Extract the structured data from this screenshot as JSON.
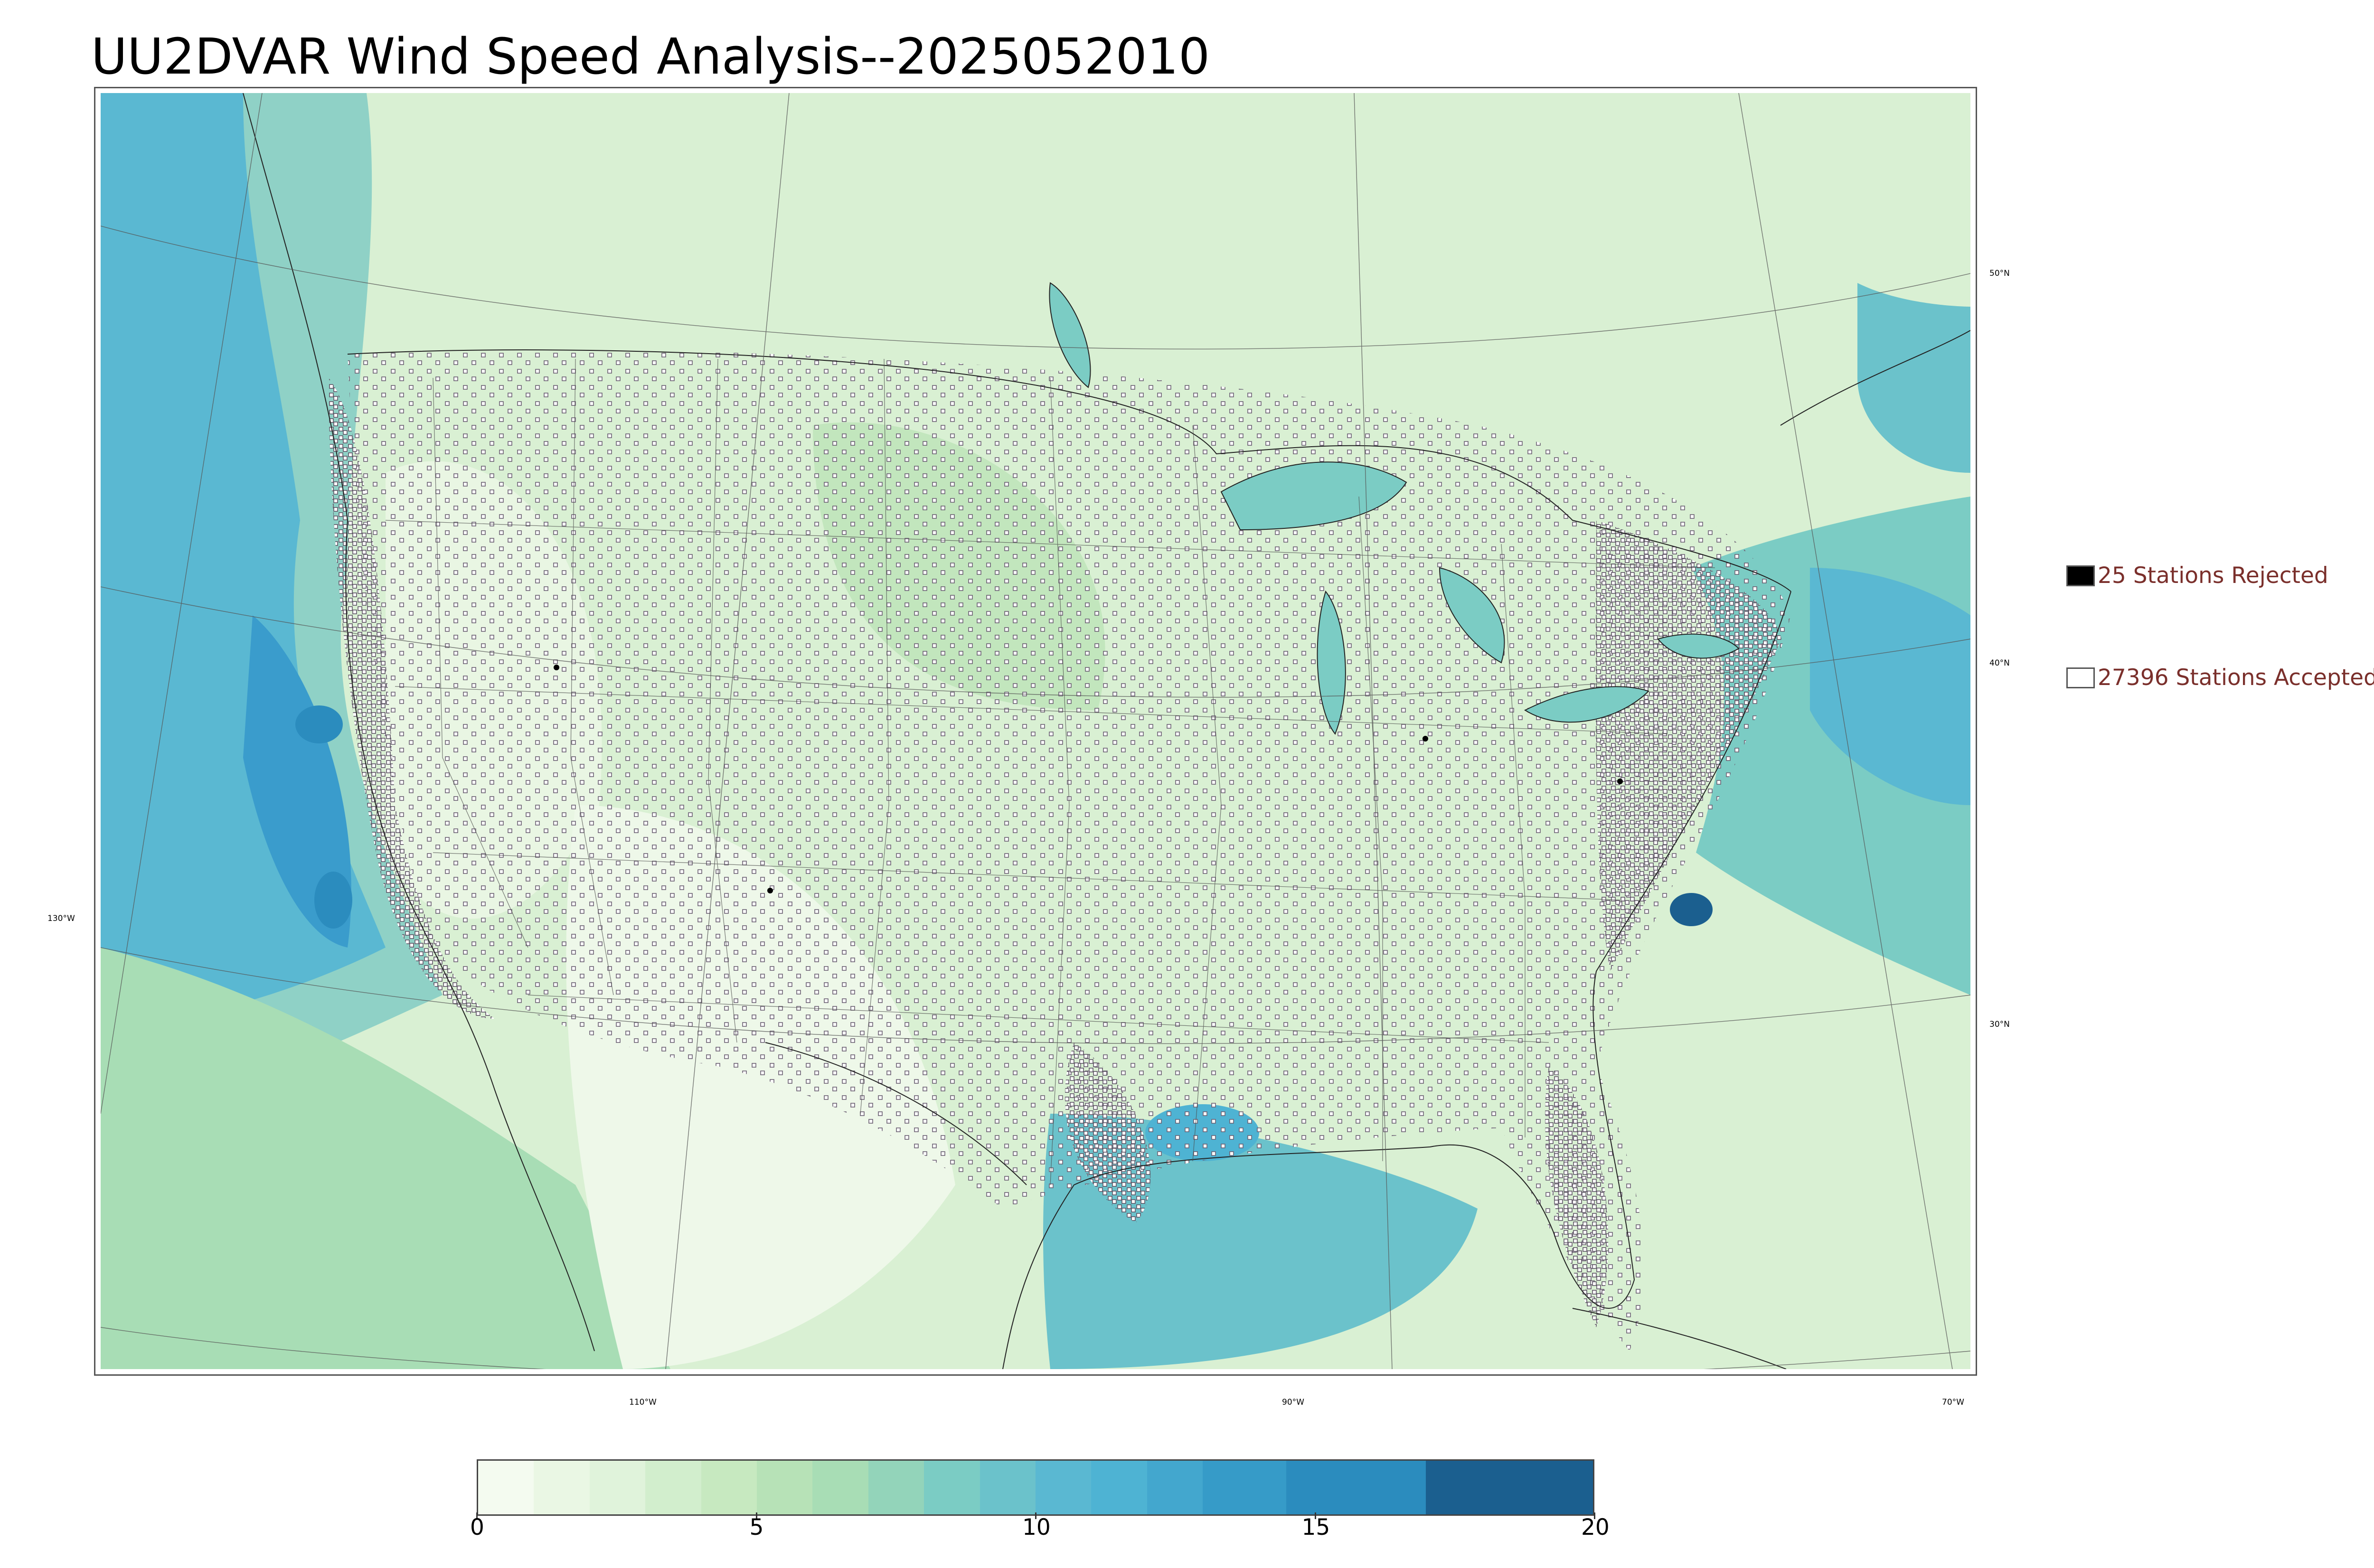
{
  "title": "UU2DVAR Wind Speed Analysis--2025052010",
  "lat_ticks": [
    "50°N",
    "40°N",
    "30°N",
    "130°W"
  ],
  "lon_ticks": [
    "110°W",
    "90°W",
    "70°W"
  ],
  "legend": {
    "rejected": {
      "label": "25 Stations Rejected",
      "color": "#000000"
    },
    "accepted": {
      "label": "27396 Stations Accepted",
      "color": "#ffffff"
    }
  },
  "colorbar": {
    "min": 0,
    "max": 20,
    "tick_labels": [
      "0",
      "5",
      "10",
      "15",
      "20"
    ],
    "levels": [
      {
        "from": 0,
        "to": 1,
        "color": "#f4fbf0"
      },
      {
        "from": 1,
        "to": 2,
        "color": "#eaf7e4"
      },
      {
        "from": 2,
        "to": 3,
        "color": "#e0f3db"
      },
      {
        "from": 3,
        "to": 4,
        "color": "#d2eecd"
      },
      {
        "from": 4,
        "to": 5,
        "color": "#c7e9c0"
      },
      {
        "from": 5,
        "to": 6,
        "color": "#b7e2b7"
      },
      {
        "from": 6,
        "to": 7,
        "color": "#a8ddb5"
      },
      {
        "from": 7,
        "to": 8,
        "color": "#93d4ba"
      },
      {
        "from": 8,
        "to": 9,
        "color": "#7bccc4"
      },
      {
        "from": 9,
        "to": 10,
        "color": "#6bc2cb"
      },
      {
        "from": 10,
        "to": 11,
        "color": "#5ab8d2"
      },
      {
        "from": 11,
        "to": 12,
        "color": "#4eb3d3"
      },
      {
        "from": 12,
        "to": 13,
        "color": "#43a7ce"
      },
      {
        "from": 13,
        "to": 14.5,
        "color": "#369bc8"
      },
      {
        "from": 14.5,
        "to": 17,
        "color": "#2b8cbe"
      },
      {
        "from": 17,
        "to": 20,
        "color": "#1b5f8f"
      }
    ]
  }
}
